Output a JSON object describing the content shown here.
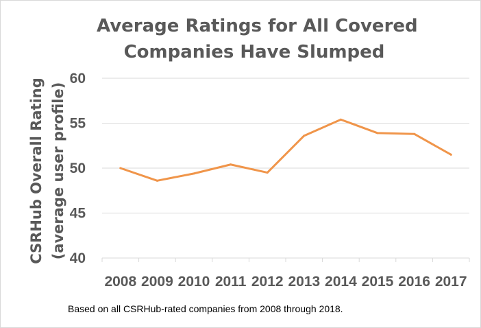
{
  "chart_data": {
    "type": "line",
    "title_lines": [
      "Average Ratings for All Covered",
      "Companies Have Slumped"
    ],
    "ylabel_lines": [
      "CSRHub Overall Rating",
      "(average user profile)"
    ],
    "xlabel": "",
    "categories": [
      "2008",
      "2009",
      "2010",
      "2011",
      "2012",
      "2013",
      "2014",
      "2015",
      "2016",
      "2017"
    ],
    "series": [
      {
        "values": [
          50.0,
          48.6,
          49.4,
          50.4,
          49.5,
          53.6,
          55.4,
          53.9,
          53.8,
          51.5
        ],
        "color": "#f0954a"
      }
    ],
    "ylim": [
      40,
      60
    ],
    "yticks": [
      40,
      45,
      50,
      55,
      60
    ],
    "grid": true,
    "legend": "none"
  },
  "footnote": "Based on all CSRHub-rated companies from 2008 through 2018.",
  "colors": {
    "line": "#f0954a",
    "grid": "#d9d9d9",
    "text": "#595959"
  }
}
